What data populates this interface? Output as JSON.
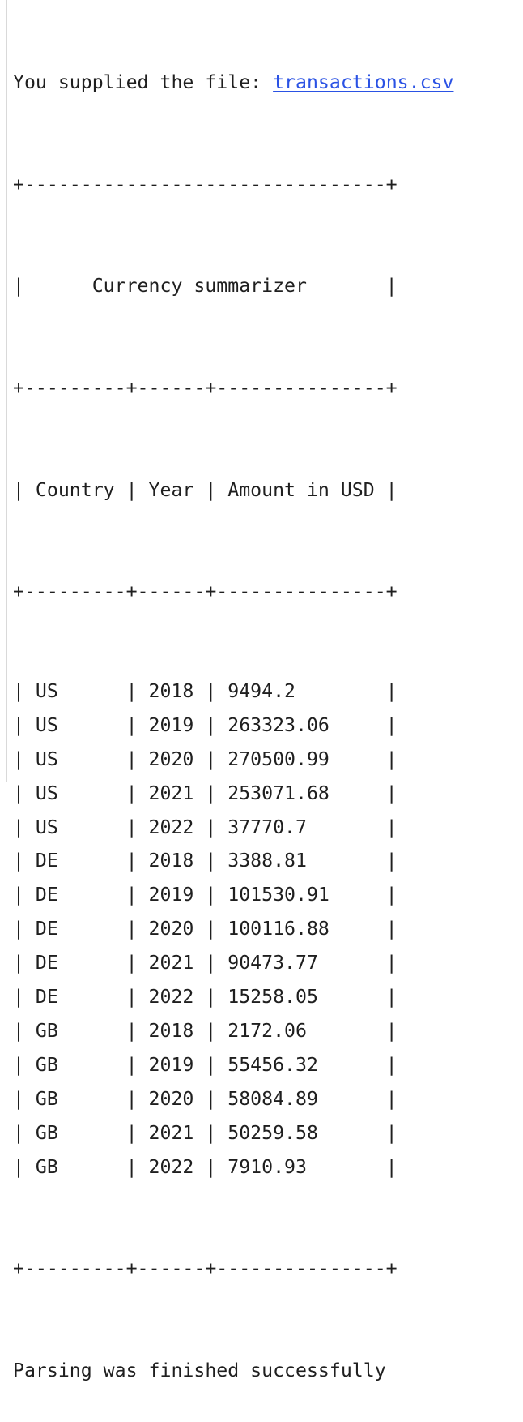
{
  "console": {
    "supplied_prefix": "You supplied the file: ",
    "file_name": "transactions.csv",
    "border_full": "+--------------------------------+",
    "title_row": "|      Currency summarizer       |",
    "border_cols": "+---------+------+---------------+",
    "header": {
      "country": "Country",
      "year": "Year",
      "amount": "Amount in USD"
    },
    "rows": [
      {
        "country": "US",
        "year": "2018",
        "amount": "9494.2"
      },
      {
        "country": "US",
        "year": "2019",
        "amount": "263323.06"
      },
      {
        "country": "US",
        "year": "2020",
        "amount": "270500.99"
      },
      {
        "country": "US",
        "year": "2021",
        "amount": "253071.68"
      },
      {
        "country": "US",
        "year": "2022",
        "amount": "37770.7"
      },
      {
        "country": "DE",
        "year": "2018",
        "amount": "3388.81"
      },
      {
        "country": "DE",
        "year": "2019",
        "amount": "101530.91"
      },
      {
        "country": "DE",
        "year": "2020",
        "amount": "100116.88"
      },
      {
        "country": "DE",
        "year": "2021",
        "amount": "90473.77"
      },
      {
        "country": "DE",
        "year": "2022",
        "amount": "15258.05"
      },
      {
        "country": "GB",
        "year": "2018",
        "amount": "2172.06"
      },
      {
        "country": "GB",
        "year": "2019",
        "amount": "55456.32"
      },
      {
        "country": "GB",
        "year": "2020",
        "amount": "58084.89"
      },
      {
        "country": "GB",
        "year": "2021",
        "amount": "50259.58"
      },
      {
        "country": "GB",
        "year": "2022",
        "amount": "7910.93"
      }
    ],
    "status_message": "Parsing was finished successfully"
  },
  "colors": {
    "text": "#1f1f1f",
    "link": "#2a52e4",
    "background": "#ffffff",
    "gutter": "#d9d9d9"
  }
}
